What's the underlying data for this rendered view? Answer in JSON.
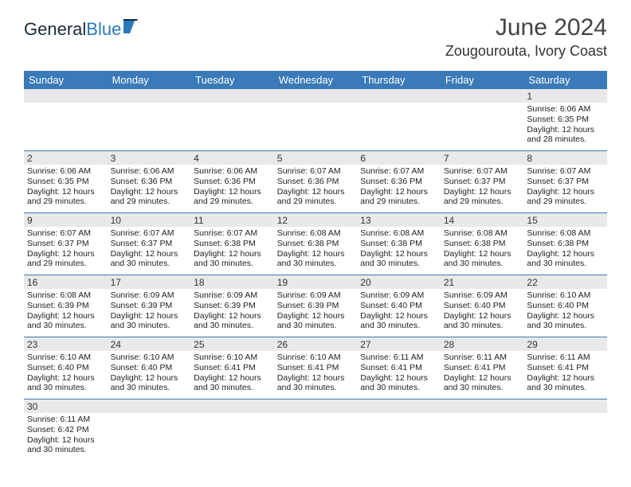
{
  "brand": {
    "part1": "General",
    "part2": "Blue"
  },
  "title": "June 2024",
  "location": "Zougourouta, Ivory Coast",
  "colors": {
    "header_bg": "#3a7ab8",
    "header_text": "#ffffff",
    "daynum_bg": "#e9e9e9",
    "row_border": "#3a7ab8",
    "text": "#222222",
    "logo_dark": "#1a2a3a",
    "logo_accent": "#2a7ab8"
  },
  "day_names": [
    "Sunday",
    "Monday",
    "Tuesday",
    "Wednesday",
    "Thursday",
    "Friday",
    "Saturday"
  ],
  "weeks": [
    [
      {
        "n": "",
        "rise": "",
        "set": "",
        "dl1": "",
        "dl2": ""
      },
      {
        "n": "",
        "rise": "",
        "set": "",
        "dl1": "",
        "dl2": ""
      },
      {
        "n": "",
        "rise": "",
        "set": "",
        "dl1": "",
        "dl2": ""
      },
      {
        "n": "",
        "rise": "",
        "set": "",
        "dl1": "",
        "dl2": ""
      },
      {
        "n": "",
        "rise": "",
        "set": "",
        "dl1": "",
        "dl2": ""
      },
      {
        "n": "",
        "rise": "",
        "set": "",
        "dl1": "",
        "dl2": ""
      },
      {
        "n": "1",
        "rise": "Sunrise: 6:06 AM",
        "set": "Sunset: 6:35 PM",
        "dl1": "Daylight: 12 hours",
        "dl2": "and 28 minutes."
      }
    ],
    [
      {
        "n": "2",
        "rise": "Sunrise: 6:06 AM",
        "set": "Sunset: 6:35 PM",
        "dl1": "Daylight: 12 hours",
        "dl2": "and 29 minutes."
      },
      {
        "n": "3",
        "rise": "Sunrise: 6:06 AM",
        "set": "Sunset: 6:36 PM",
        "dl1": "Daylight: 12 hours",
        "dl2": "and 29 minutes."
      },
      {
        "n": "4",
        "rise": "Sunrise: 6:06 AM",
        "set": "Sunset: 6:36 PM",
        "dl1": "Daylight: 12 hours",
        "dl2": "and 29 minutes."
      },
      {
        "n": "5",
        "rise": "Sunrise: 6:07 AM",
        "set": "Sunset: 6:36 PM",
        "dl1": "Daylight: 12 hours",
        "dl2": "and 29 minutes."
      },
      {
        "n": "6",
        "rise": "Sunrise: 6:07 AM",
        "set": "Sunset: 6:36 PM",
        "dl1": "Daylight: 12 hours",
        "dl2": "and 29 minutes."
      },
      {
        "n": "7",
        "rise": "Sunrise: 6:07 AM",
        "set": "Sunset: 6:37 PM",
        "dl1": "Daylight: 12 hours",
        "dl2": "and 29 minutes."
      },
      {
        "n": "8",
        "rise": "Sunrise: 6:07 AM",
        "set": "Sunset: 6:37 PM",
        "dl1": "Daylight: 12 hours",
        "dl2": "and 29 minutes."
      }
    ],
    [
      {
        "n": "9",
        "rise": "Sunrise: 6:07 AM",
        "set": "Sunset: 6:37 PM",
        "dl1": "Daylight: 12 hours",
        "dl2": "and 29 minutes."
      },
      {
        "n": "10",
        "rise": "Sunrise: 6:07 AM",
        "set": "Sunset: 6:37 PM",
        "dl1": "Daylight: 12 hours",
        "dl2": "and 30 minutes."
      },
      {
        "n": "11",
        "rise": "Sunrise: 6:07 AM",
        "set": "Sunset: 6:38 PM",
        "dl1": "Daylight: 12 hours",
        "dl2": "and 30 minutes."
      },
      {
        "n": "12",
        "rise": "Sunrise: 6:08 AM",
        "set": "Sunset: 6:38 PM",
        "dl1": "Daylight: 12 hours",
        "dl2": "and 30 minutes."
      },
      {
        "n": "13",
        "rise": "Sunrise: 6:08 AM",
        "set": "Sunset: 6:38 PM",
        "dl1": "Daylight: 12 hours",
        "dl2": "and 30 minutes."
      },
      {
        "n": "14",
        "rise": "Sunrise: 6:08 AM",
        "set": "Sunset: 6:38 PM",
        "dl1": "Daylight: 12 hours",
        "dl2": "and 30 minutes."
      },
      {
        "n": "15",
        "rise": "Sunrise: 6:08 AM",
        "set": "Sunset: 6:38 PM",
        "dl1": "Daylight: 12 hours",
        "dl2": "and 30 minutes."
      }
    ],
    [
      {
        "n": "16",
        "rise": "Sunrise: 6:08 AM",
        "set": "Sunset: 6:39 PM",
        "dl1": "Daylight: 12 hours",
        "dl2": "and 30 minutes."
      },
      {
        "n": "17",
        "rise": "Sunrise: 6:09 AM",
        "set": "Sunset: 6:39 PM",
        "dl1": "Daylight: 12 hours",
        "dl2": "and 30 minutes."
      },
      {
        "n": "18",
        "rise": "Sunrise: 6:09 AM",
        "set": "Sunset: 6:39 PM",
        "dl1": "Daylight: 12 hours",
        "dl2": "and 30 minutes."
      },
      {
        "n": "19",
        "rise": "Sunrise: 6:09 AM",
        "set": "Sunset: 6:39 PM",
        "dl1": "Daylight: 12 hours",
        "dl2": "and 30 minutes."
      },
      {
        "n": "20",
        "rise": "Sunrise: 6:09 AM",
        "set": "Sunset: 6:40 PM",
        "dl1": "Daylight: 12 hours",
        "dl2": "and 30 minutes."
      },
      {
        "n": "21",
        "rise": "Sunrise: 6:09 AM",
        "set": "Sunset: 6:40 PM",
        "dl1": "Daylight: 12 hours",
        "dl2": "and 30 minutes."
      },
      {
        "n": "22",
        "rise": "Sunrise: 6:10 AM",
        "set": "Sunset: 6:40 PM",
        "dl1": "Daylight: 12 hours",
        "dl2": "and 30 minutes."
      }
    ],
    [
      {
        "n": "23",
        "rise": "Sunrise: 6:10 AM",
        "set": "Sunset: 6:40 PM",
        "dl1": "Daylight: 12 hours",
        "dl2": "and 30 minutes."
      },
      {
        "n": "24",
        "rise": "Sunrise: 6:10 AM",
        "set": "Sunset: 6:40 PM",
        "dl1": "Daylight: 12 hours",
        "dl2": "and 30 minutes."
      },
      {
        "n": "25",
        "rise": "Sunrise: 6:10 AM",
        "set": "Sunset: 6:41 PM",
        "dl1": "Daylight: 12 hours",
        "dl2": "and 30 minutes."
      },
      {
        "n": "26",
        "rise": "Sunrise: 6:10 AM",
        "set": "Sunset: 6:41 PM",
        "dl1": "Daylight: 12 hours",
        "dl2": "and 30 minutes."
      },
      {
        "n": "27",
        "rise": "Sunrise: 6:11 AM",
        "set": "Sunset: 6:41 PM",
        "dl1": "Daylight: 12 hours",
        "dl2": "and 30 minutes."
      },
      {
        "n": "28",
        "rise": "Sunrise: 6:11 AM",
        "set": "Sunset: 6:41 PM",
        "dl1": "Daylight: 12 hours",
        "dl2": "and 30 minutes."
      },
      {
        "n": "29",
        "rise": "Sunrise: 6:11 AM",
        "set": "Sunset: 6:41 PM",
        "dl1": "Daylight: 12 hours",
        "dl2": "and 30 minutes."
      }
    ],
    [
      {
        "n": "30",
        "rise": "Sunrise: 6:11 AM",
        "set": "Sunset: 6:42 PM",
        "dl1": "Daylight: 12 hours",
        "dl2": "and 30 minutes."
      },
      {
        "n": "",
        "rise": "",
        "set": "",
        "dl1": "",
        "dl2": ""
      },
      {
        "n": "",
        "rise": "",
        "set": "",
        "dl1": "",
        "dl2": ""
      },
      {
        "n": "",
        "rise": "",
        "set": "",
        "dl1": "",
        "dl2": ""
      },
      {
        "n": "",
        "rise": "",
        "set": "",
        "dl1": "",
        "dl2": ""
      },
      {
        "n": "",
        "rise": "",
        "set": "",
        "dl1": "",
        "dl2": ""
      },
      {
        "n": "",
        "rise": "",
        "set": "",
        "dl1": "",
        "dl2": ""
      }
    ]
  ]
}
